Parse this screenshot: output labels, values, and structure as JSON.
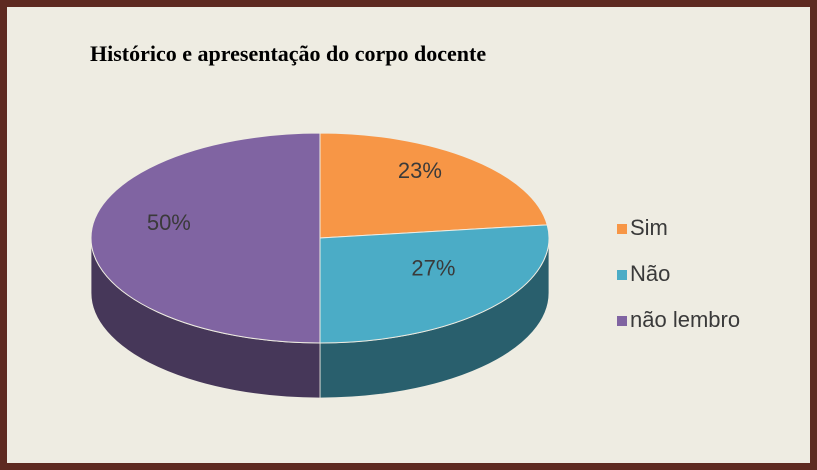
{
  "chart_data": {
    "type": "pie",
    "title": "Histórico e apresentação do corpo docente",
    "categories": [
      "Sim",
      "Não",
      "não lembro"
    ],
    "values": [
      23,
      27,
      50
    ],
    "value_labels": [
      "23%",
      "27%",
      "50%"
    ],
    "colors": [
      "#f79646",
      "#4bacc6",
      "#8064a2"
    ],
    "legend": "right"
  }
}
